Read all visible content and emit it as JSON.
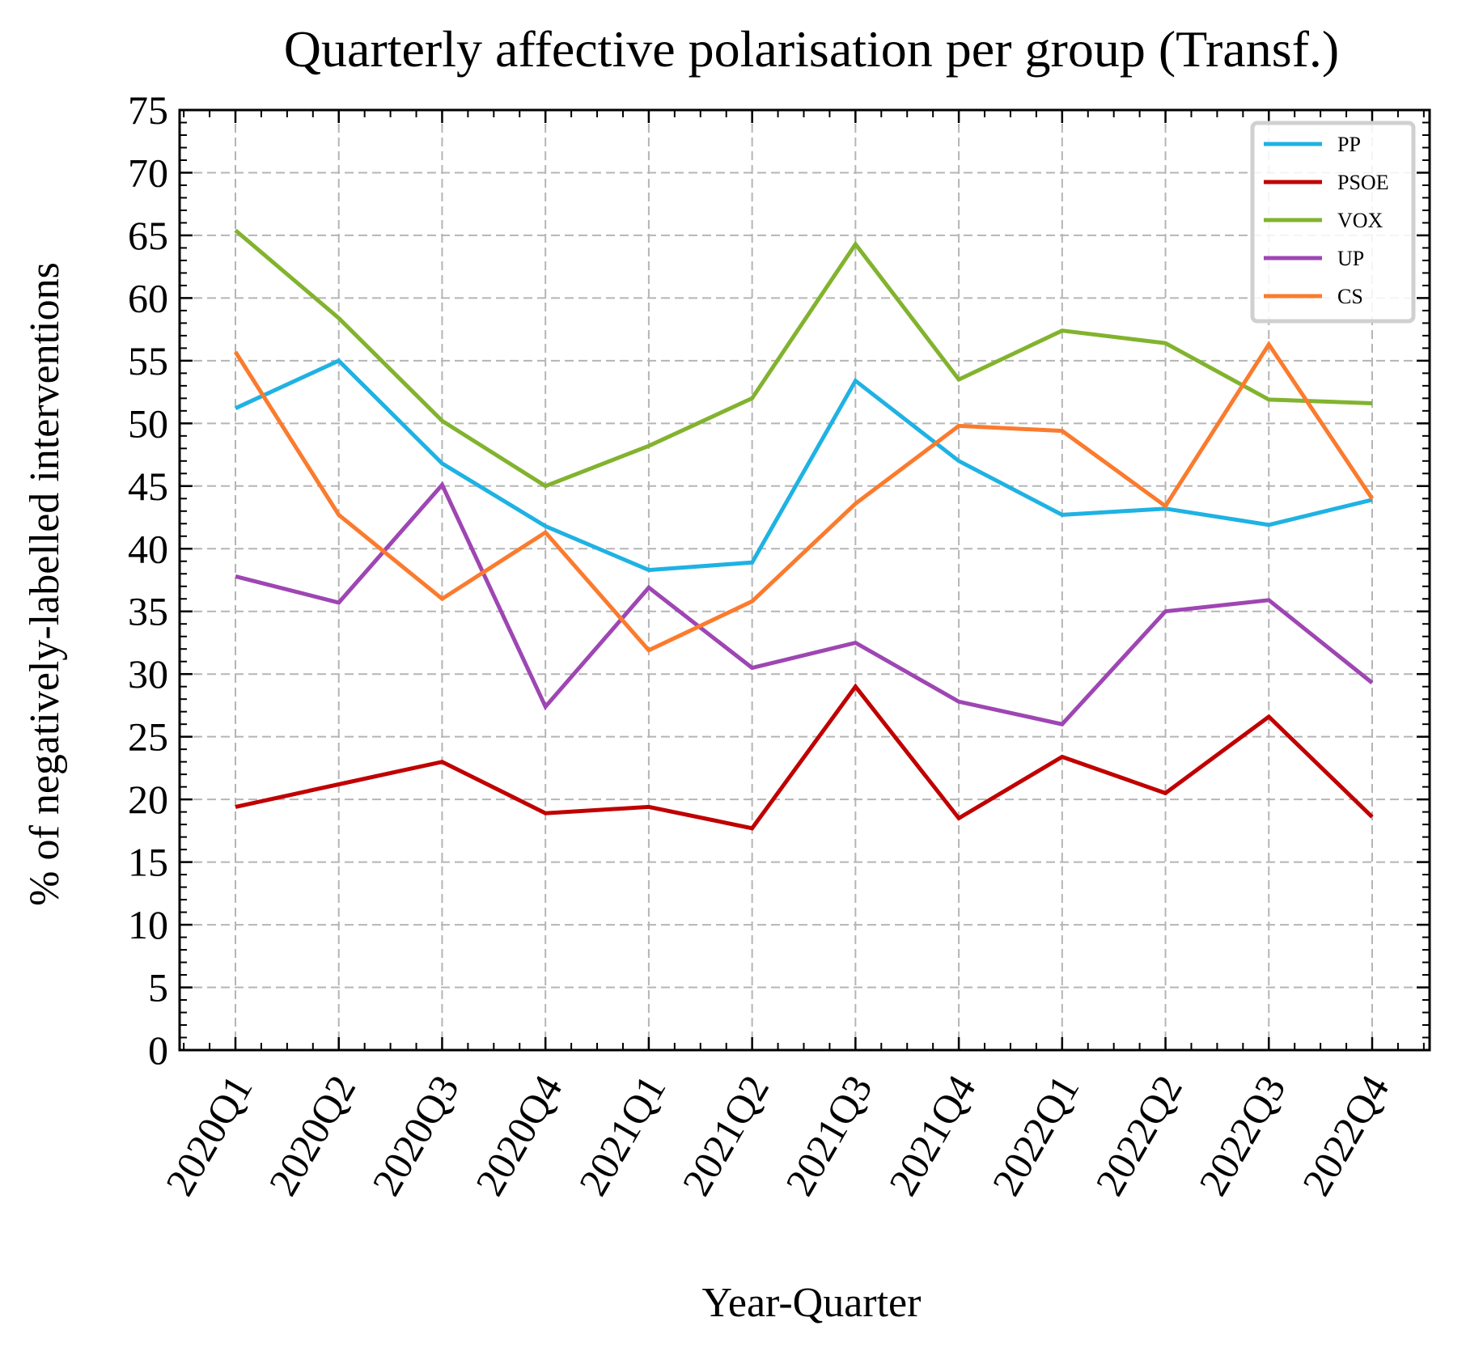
{
  "chart_data": {
    "type": "line",
    "title": "Quarterly affective polarisation per group (Transf.)",
    "xlabel": "Year-Quarter",
    "ylabel": "% of negatively-labelled interventions",
    "categories": [
      "2020Q1",
      "2020Q2",
      "2020Q3",
      "2020Q4",
      "2021Q1",
      "2021Q2",
      "2021Q3",
      "2021Q4",
      "2022Q1",
      "2022Q2",
      "2022Q3",
      "2022Q4"
    ],
    "ylim": [
      0,
      75
    ],
    "yticks": [
      "0",
      "5",
      "10",
      "15",
      "20",
      "25",
      "30",
      "35",
      "40",
      "45",
      "50",
      "55",
      "60",
      "65",
      "70",
      "75"
    ],
    "grid": true,
    "legend_position": "top-right",
    "series": [
      {
        "name": "PP",
        "color": "#1fb2e3",
        "values": [
          51.2,
          55.0,
          46.8,
          41.8,
          38.3,
          38.9,
          53.4,
          47.0,
          42.7,
          43.2,
          41.9,
          43.9
        ]
      },
      {
        "name": "PSOE",
        "color": "#c00000",
        "values": [
          19.4,
          21.2,
          23.0,
          18.9,
          19.4,
          17.7,
          29.0,
          18.5,
          23.4,
          20.5,
          26.6,
          18.6
        ]
      },
      {
        "name": "VOX",
        "color": "#82b32e",
        "values": [
          65.4,
          58.4,
          50.2,
          45.0,
          48.2,
          52.0,
          64.3,
          53.5,
          57.4,
          56.4,
          51.9,
          51.6
        ]
      },
      {
        "name": "UP",
        "color": "#9e46b3",
        "values": [
          37.8,
          35.7,
          45.1,
          27.4,
          36.9,
          30.5,
          32.5,
          27.8,
          26.0,
          35.0,
          35.9,
          29.3
        ]
      },
      {
        "name": "CS",
        "color": "#fb7b2e",
        "values": [
          55.7,
          42.7,
          36.0,
          41.3,
          31.9,
          35.8,
          43.6,
          49.8,
          49.4,
          43.4,
          56.3,
          44.0
        ]
      }
    ]
  }
}
